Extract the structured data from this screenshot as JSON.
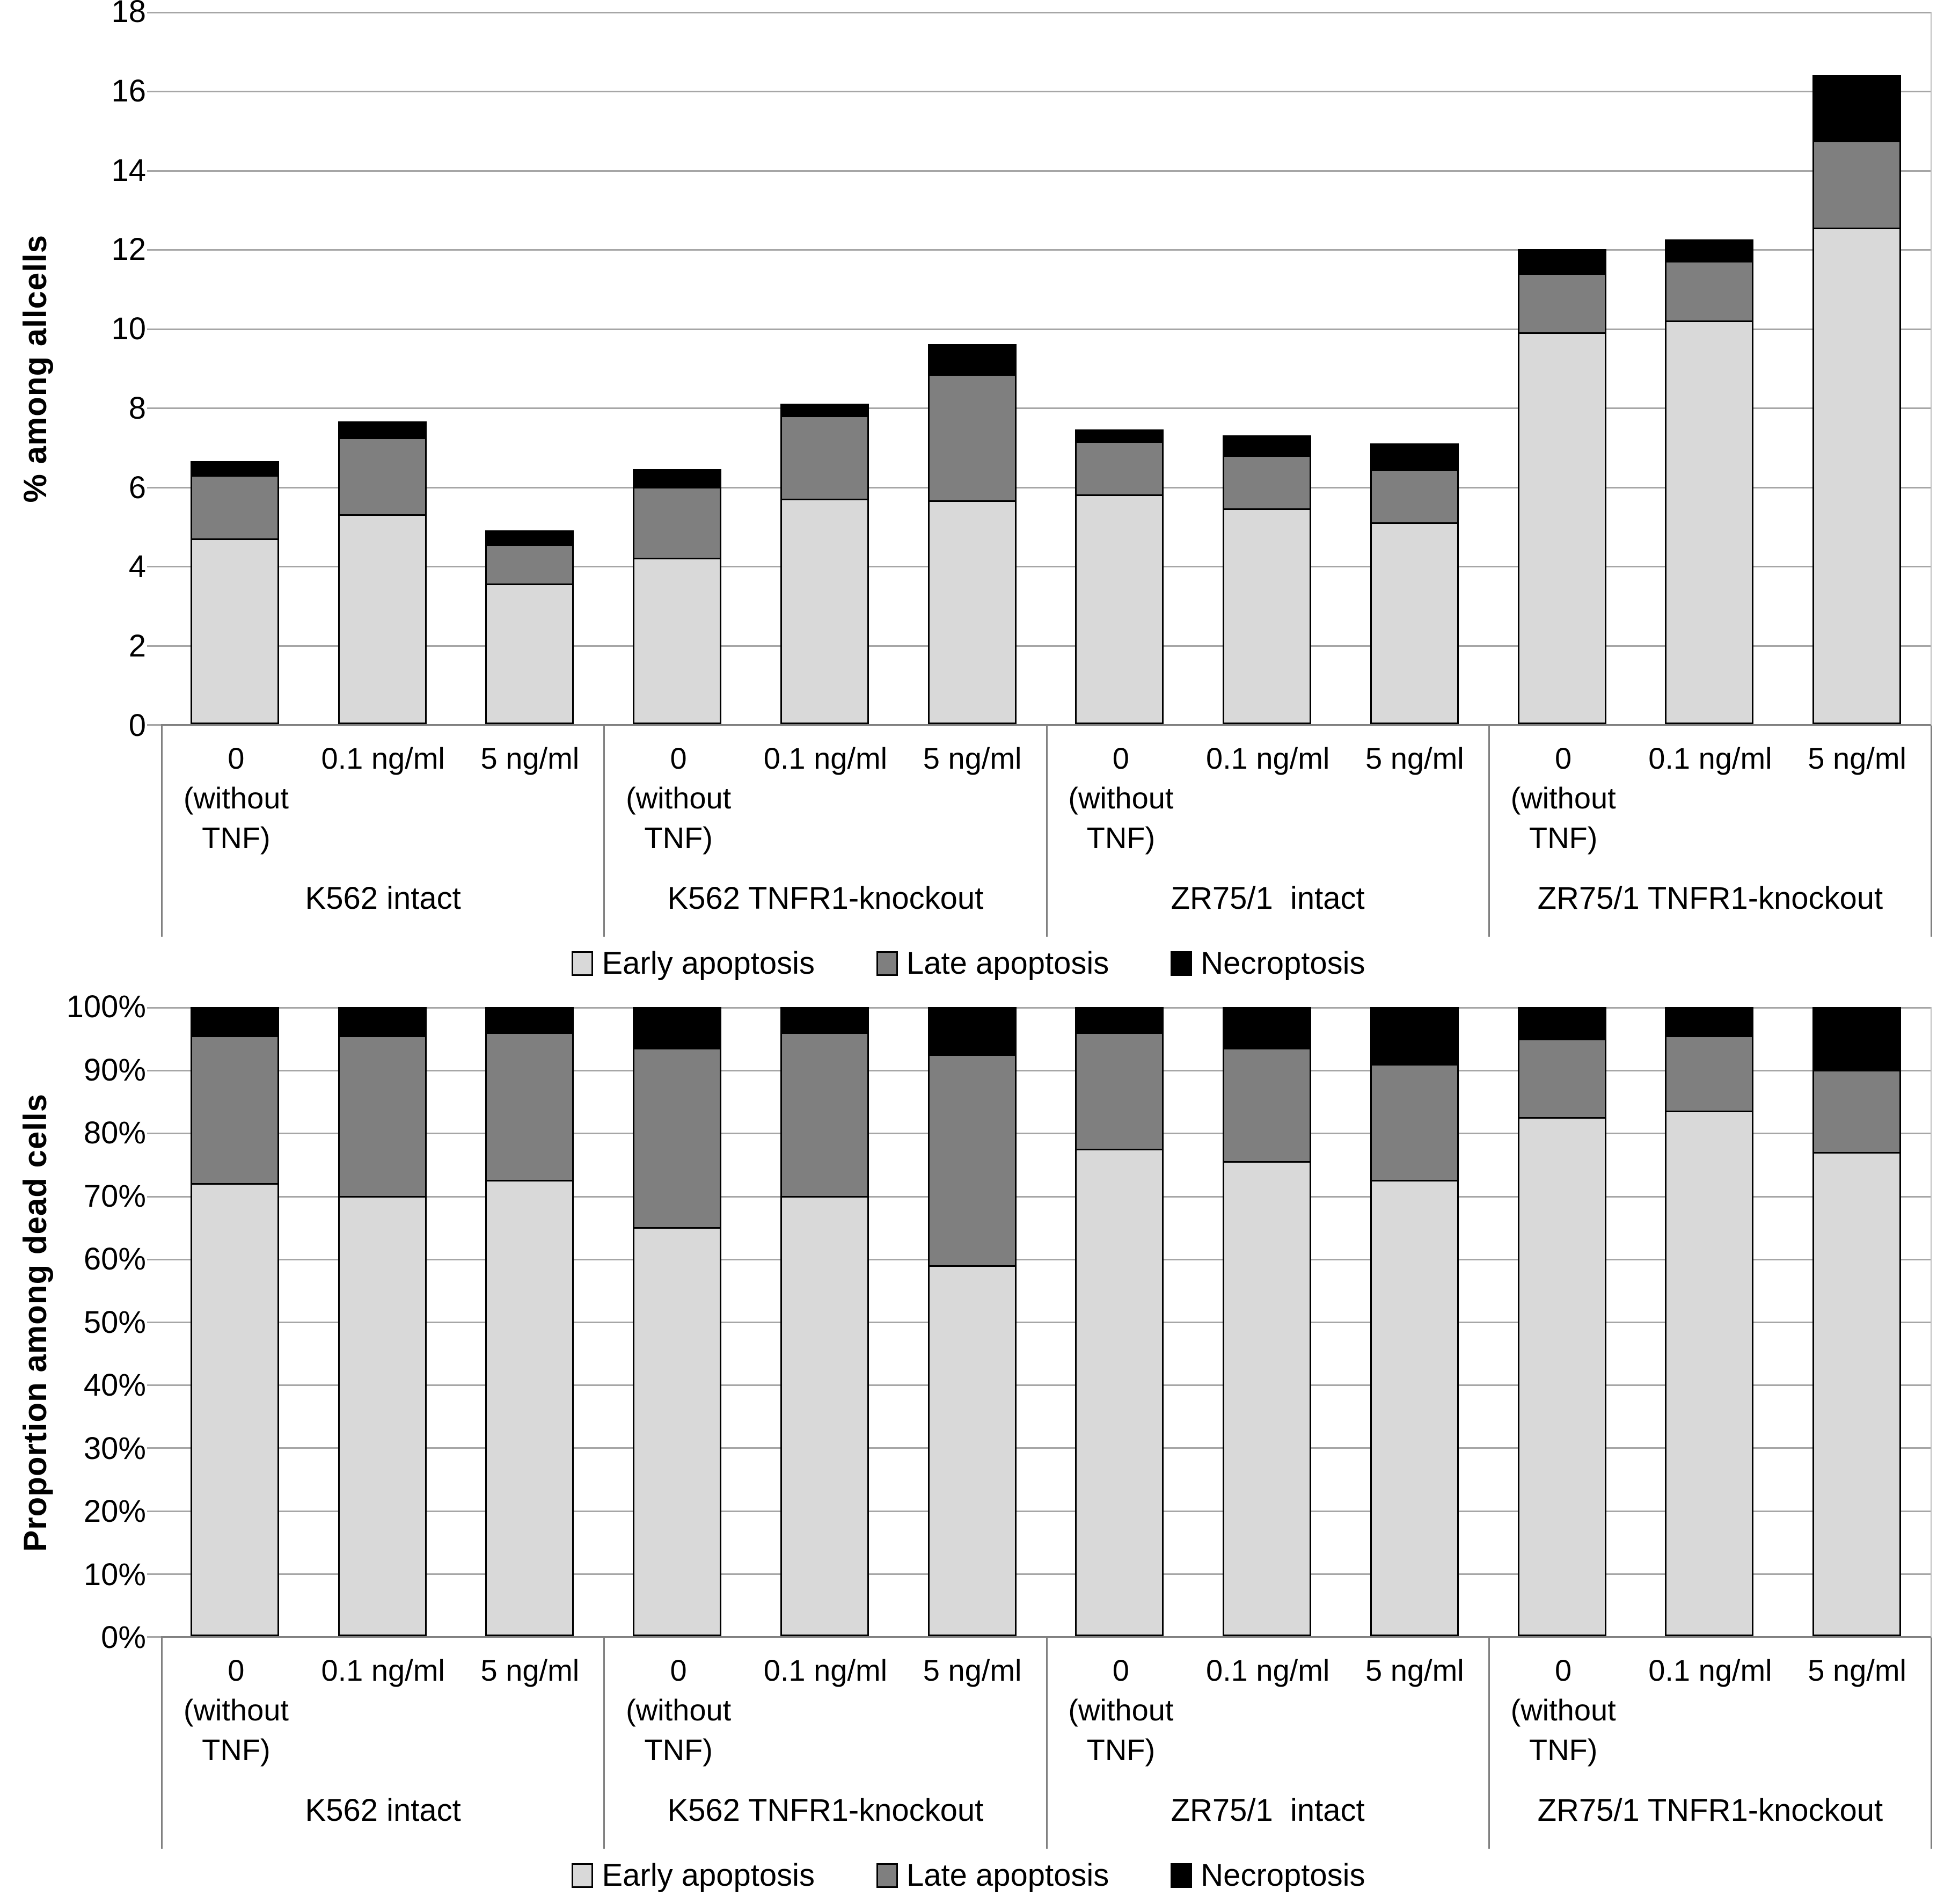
{
  "colors": {
    "early_apoptosis": "#d9d9d9",
    "late_apoptosis": "#7f7f7f",
    "necroptosis": "#000000",
    "gridline": "#a6a6a6",
    "axis": "#808080",
    "text": "#000000"
  },
  "chart_data": [
    {
      "type": "bar",
      "stacked": true,
      "title": "",
      "xlabel": "",
      "ylabel": "% among allcells",
      "ylim": [
        0,
        18
      ],
      "yticks": [
        "0",
        "2",
        "4",
        "6",
        "8",
        "10",
        "12",
        "14",
        "16",
        "18"
      ],
      "grid": true,
      "legend_position": "bottom",
      "groups": [
        {
          "label": "K562 intact",
          "conditions": [
            "0\n(without\nTNF)",
            "0.1 ng/ml",
            "5 ng/ml"
          ]
        },
        {
          "label": "K562 TNFR1-knockout",
          "conditions": [
            "0\n(without\nTNF)",
            "0.1 ng/ml",
            "5 ng/ml"
          ]
        },
        {
          "label": "ZR75/1  intact",
          "conditions": [
            "0\n(without\nTNF)",
            "0.1 ng/ml",
            "5 ng/ml"
          ]
        },
        {
          "label": "ZR75/1 TNFR1-knockout",
          "conditions": [
            "0\n(without\nTNF)",
            "0.1 ng/ml",
            "5 ng/ml"
          ]
        }
      ],
      "series": [
        {
          "name": "Early apoptosis",
          "color": "#d9d9d9",
          "values": [
            4.7,
            5.3,
            3.55,
            4.2,
            5.7,
            5.65,
            5.8,
            5.45,
            5.1,
            9.9,
            10.2,
            12.55
          ]
        },
        {
          "name": "Late apoptosis",
          "color": "#7f7f7f",
          "values": [
            1.6,
            1.95,
            1.0,
            1.8,
            2.1,
            3.2,
            1.35,
            1.35,
            1.35,
            1.5,
            1.5,
            2.2
          ]
        },
        {
          "name": "Necroptosis",
          "color": "#000000",
          "values": [
            0.35,
            0.4,
            0.35,
            0.45,
            0.3,
            0.75,
            0.3,
            0.5,
            0.65,
            0.6,
            0.55,
            1.65
          ]
        }
      ]
    },
    {
      "type": "bar",
      "stacked": true,
      "title": "",
      "xlabel": "",
      "ylabel": "Proportion among dead cells",
      "ylim": [
        0,
        100
      ],
      "yticks": [
        "0%",
        "10%",
        "20%",
        "30%",
        "40%",
        "50%",
        "60%",
        "70%",
        "80%",
        "90%",
        "100%"
      ],
      "grid": true,
      "legend_position": "bottom",
      "groups": [
        {
          "label": "K562 intact",
          "conditions": [
            "0\n(without\nTNF)",
            "0.1 ng/ml",
            "5 ng/ml"
          ]
        },
        {
          "label": "K562 TNFR1-knockout",
          "conditions": [
            "0\n(without\nTNF)",
            "0.1 ng/ml",
            "5 ng/ml"
          ]
        },
        {
          "label": "ZR75/1  intact",
          "conditions": [
            "0\n(without\nTNF)",
            "0.1 ng/ml",
            "5 ng/ml"
          ]
        },
        {
          "label": "ZR75/1 TNFR1-knockout",
          "conditions": [
            "0\n(without\nTNF)",
            "0.1 ng/ml",
            "5 ng/ml"
          ]
        }
      ],
      "series": [
        {
          "name": "Early apoptosis",
          "color": "#d9d9d9",
          "values": [
            72,
            70,
            72.5,
            65,
            70,
            59,
            77.5,
            75.5,
            72.5,
            82.5,
            83.5,
            77
          ]
        },
        {
          "name": "Late apoptosis",
          "color": "#7f7f7f",
          "values": [
            23.5,
            25.5,
            23.5,
            28.5,
            26,
            33.5,
            18.5,
            18,
            18.5,
            12.5,
            12,
            13
          ]
        },
        {
          "name": "Necroptosis",
          "color": "#000000",
          "values": [
            4.5,
            4.5,
            4,
            6.5,
            4,
            7.5,
            4,
            6.5,
            9,
            5,
            4.5,
            10
          ]
        }
      ]
    }
  ]
}
